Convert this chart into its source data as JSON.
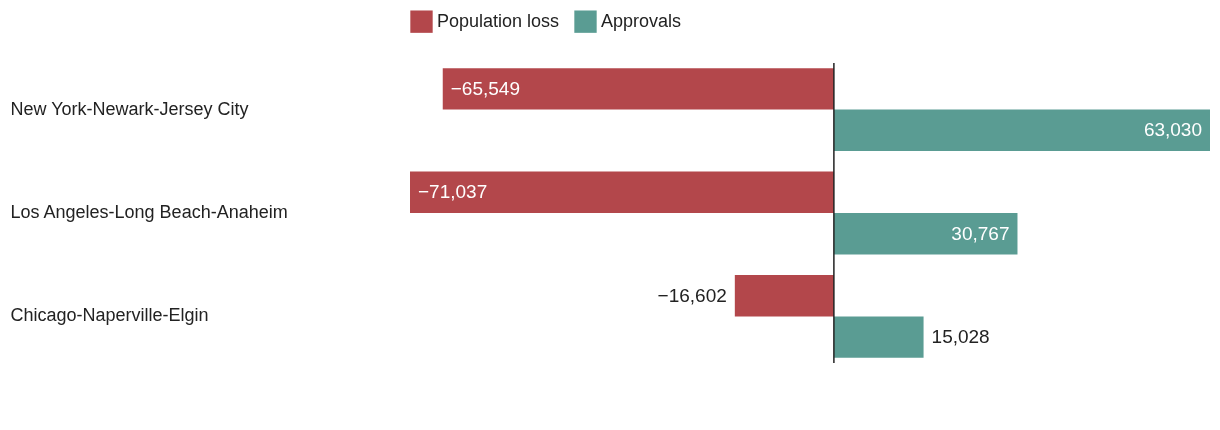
{
  "chart_data": {
    "type": "bar",
    "orientation": "horizontal",
    "categories": [
      "New York-Newark-Jersey City",
      "Los Angeles-Long Beach-Anaheim",
      "Chicago-Naperville-Elgin"
    ],
    "series": [
      {
        "name": "Population loss",
        "color": "#b3474b",
        "values": [
          -65549,
          -71037,
          -16602
        ],
        "value_labels": [
          "−65,549",
          "−71,037",
          "−16,602"
        ]
      },
      {
        "name": "Approvals",
        "color": "#5a9c93",
        "values": [
          63030,
          30767,
          15028
        ],
        "value_labels": [
          "63,030",
          "30,767",
          "15,028"
        ]
      }
    ],
    "legend": "top left"
  }
}
